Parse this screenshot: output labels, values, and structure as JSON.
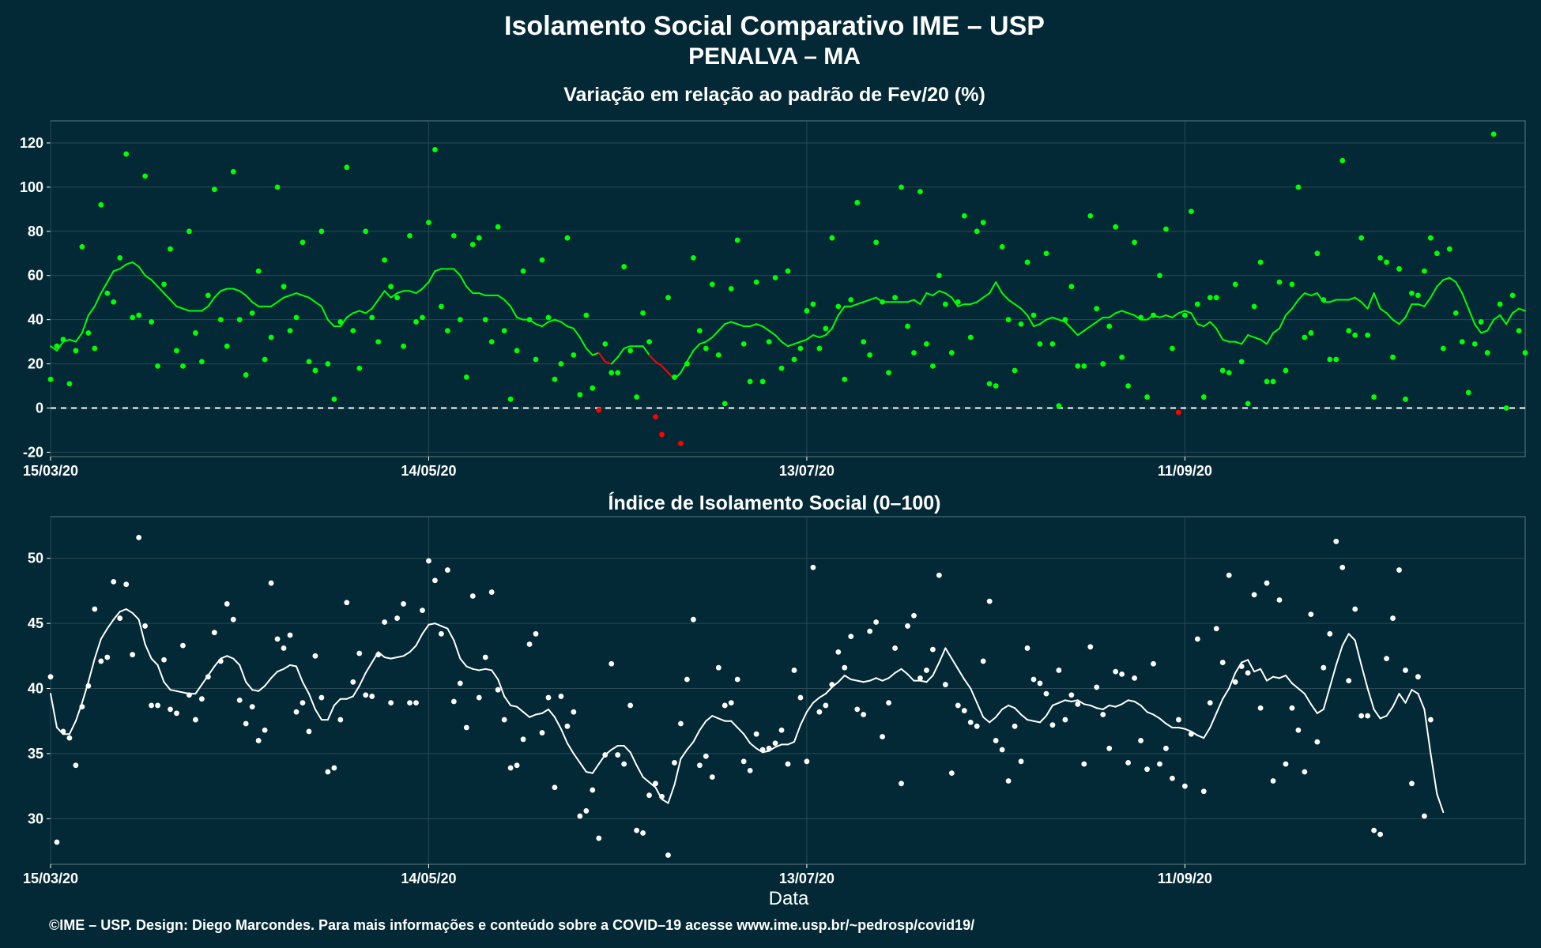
{
  "header": {
    "title": "Isolamento Social Comparativo IME – USP",
    "subtitle": "PENALVA – MA"
  },
  "footer": {
    "credit": "©IME – USP. Design: Diego Marcondes. Para mais informações e conteúdo sobre a COVID–19 acesse www.ime.usp.br/~pedrosp/covid19/"
  },
  "colors": {
    "background": "#022935",
    "positive": "#00ff00",
    "negative": "#ff0000",
    "index": "#ffffff",
    "grid": "#2a4a55"
  },
  "chart_data": [
    {
      "type": "scatter",
      "title": "Variação em relação ao padrão de Fev/20 (%)",
      "xlabel": "",
      "ylabel": "",
      "x_start": "15/03/20",
      "x_end": "04/11/20",
      "x_ticks": [
        "15/03/20",
        "14/05/20",
        "13/07/20",
        "11/09/20"
      ],
      "y_ticks": [
        -20,
        0,
        20,
        40,
        60,
        80,
        100,
        120
      ],
      "ylim": [
        -22,
        130
      ],
      "reference_line": 0,
      "grid": true,
      "smoothed_line": "7-day moving average",
      "points": [
        13,
        28,
        31,
        11,
        26,
        73,
        34,
        27,
        92,
        52,
        48,
        68,
        115,
        41,
        42,
        105,
        39,
        19,
        56,
        72,
        26,
        19,
        80,
        34,
        21,
        51,
        99,
        40,
        28,
        107,
        40,
        15,
        43,
        62,
        22,
        32,
        100,
        55,
        35,
        41,
        75,
        21,
        17,
        80,
        20,
        4,
        39,
        109,
        35,
        18,
        80,
        41,
        30,
        67,
        55,
        50,
        28,
        78,
        39,
        41,
        84,
        117,
        46,
        35,
        78,
        40,
        14,
        74,
        77,
        40,
        30,
        82,
        35,
        4,
        26,
        62,
        40,
        22,
        67,
        41,
        13,
        20,
        77,
        24,
        6,
        42,
        9,
        -1,
        29,
        16,
        16,
        64,
        26,
        5,
        43,
        30,
        -4,
        -12,
        50,
        14,
        -16,
        20,
        68,
        35,
        27,
        56,
        24,
        2,
        54,
        76,
        29,
        12,
        57,
        12,
        30,
        59,
        18,
        62,
        22,
        27,
        44,
        47,
        27,
        36,
        77,
        46,
        13,
        49,
        93,
        30,
        24,
        75,
        48,
        16,
        50,
        100,
        37,
        25,
        98,
        29,
        19,
        60,
        47,
        25,
        48,
        87,
        32,
        80,
        84,
        11,
        10,
        73,
        40,
        17,
        38,
        66,
        42,
        29,
        70,
        29,
        1,
        40,
        55,
        19,
        19,
        87,
        45,
        20,
        37,
        82,
        23,
        10,
        75,
        41,
        5,
        42,
        60,
        81,
        27,
        -2,
        42,
        89,
        47,
        5,
        50,
        50,
        17,
        16,
        56,
        21,
        2,
        46,
        66,
        12,
        12,
        57,
        17,
        56,
        100,
        32,
        34,
        70,
        49,
        22,
        22,
        112,
        35,
        33,
        77,
        33,
        5,
        68,
        66,
        23,
        63,
        4,
        52,
        51,
        62,
        77,
        70,
        27,
        72,
        43,
        30,
        7,
        29,
        39,
        25,
        124,
        47,
        0,
        51,
        35,
        25
      ],
      "smoothed": [
        28,
        26,
        30,
        31,
        30,
        34,
        42,
        46,
        52,
        57,
        62,
        63,
        65,
        66,
        64,
        60,
        58,
        55,
        52,
        49,
        46,
        45,
        44,
        44,
        44,
        46,
        50,
        53,
        54,
        54,
        53,
        51,
        48,
        46,
        46,
        46,
        48,
        50,
        51,
        52,
        51,
        50,
        48,
        46,
        40,
        37,
        37,
        41,
        43,
        44,
        43,
        45,
        49,
        53,
        50,
        52,
        53,
        53,
        52,
        54,
        57,
        62,
        63,
        63,
        63,
        60,
        55,
        52,
        52,
        51,
        51,
        51,
        49,
        46,
        41,
        40,
        40,
        38,
        37,
        39,
        40,
        39,
        37,
        36,
        32,
        27,
        24,
        25,
        21,
        20,
        23,
        27,
        28,
        28,
        28,
        24,
        21,
        19,
        16,
        13,
        16,
        21,
        26,
        29,
        30,
        32,
        35,
        38,
        39,
        38,
        37,
        37,
        38,
        37,
        35,
        33,
        30,
        28,
        29,
        30,
        31,
        33,
        32,
        33,
        36,
        42,
        46,
        46,
        47,
        48,
        49,
        50,
        48,
        48,
        48,
        48,
        48,
        49,
        47,
        52,
        51,
        53,
        52,
        50,
        46,
        47,
        47,
        48,
        50,
        52,
        57,
        52,
        49,
        47,
        45,
        42,
        37,
        38,
        40,
        41,
        40,
        39,
        36,
        33,
        35,
        37,
        39,
        41,
        41,
        43,
        44,
        43,
        42,
        40,
        40,
        42,
        41,
        42,
        41,
        43,
        44,
        43,
        38,
        37,
        39,
        36,
        31,
        30,
        30,
        29,
        33,
        32,
        31,
        29,
        34,
        36,
        42,
        45,
        49,
        52,
        51,
        52,
        48,
        48,
        49,
        49,
        49,
        50,
        48,
        45,
        52,
        45,
        43,
        40,
        38,
        41,
        47,
        47,
        46,
        50,
        55,
        58,
        59,
        57,
        52,
        45,
        38,
        34,
        35,
        40,
        42,
        38,
        43,
        45,
        44
      ]
    },
    {
      "type": "scatter",
      "title": "Índice de Isolamento Social (0–100)",
      "xlabel": "Data",
      "ylabel": "",
      "x_start": "15/03/20",
      "x_end": "04/11/20",
      "x_ticks": [
        "15/03/20",
        "14/05/20",
        "13/07/20",
        "11/09/20"
      ],
      "y_ticks": [
        30,
        35,
        40,
        45,
        50
      ],
      "ylim": [
        26.5,
        53.2
      ],
      "grid": true,
      "smoothed_line": "7-day moving average",
      "points": [
        40.9,
        28.2,
        36.7,
        36.2,
        34.1,
        38.6,
        40.2,
        46.1,
        42.1,
        42.4,
        48.2,
        45.4,
        48.0,
        42.6,
        51.6,
        44.8,
        38.7,
        38.7,
        42.2,
        38.4,
        38.1,
        43.3,
        39.5,
        37.6,
        39.2,
        40.9,
        44.3,
        42.1,
        46.5,
        45.3,
        39.1,
        37.3,
        38.6,
        36.0,
        36.8,
        48.1,
        43.8,
        43.1,
        44.1,
        38.2,
        38.9,
        36.7,
        42.5,
        39.3,
        33.6,
        33.9,
        37.6,
        46.6,
        40.5,
        42.7,
        39.5,
        39.4,
        42.6,
        45.1,
        38.9,
        45.4,
        46.5,
        38.9,
        38.9,
        46.0,
        49.8,
        48.3,
        44.2,
        49.1,
        39.0,
        40.4,
        37.0,
        47.1,
        39.3,
        42.4,
        47.4,
        39.9,
        37.6,
        33.9,
        34.1,
        36.1,
        43.4,
        44.2,
        36.6,
        39.3,
        32.4,
        39.4,
        37.1,
        38.2,
        30.2,
        30.6,
        32.2,
        28.5,
        34.9,
        41.9,
        34.9,
        34.2,
        38.7,
        29.1,
        28.9,
        31.8,
        32.7,
        31.7,
        27.2,
        34.3,
        37.3,
        40.7,
        45.3,
        34.1,
        34.8,
        33.2,
        41.6,
        38.7,
        38.9,
        40.7,
        34.4,
        33.7,
        36.5,
        35.3,
        35.4,
        35.8,
        36.8,
        34.2,
        41.4,
        39.3,
        34.4,
        49.3,
        38.2,
        38.7,
        40.3,
        42.8,
        41.6,
        44.0,
        38.4,
        38.0,
        44.4,
        45.1,
        36.3,
        38.9,
        43.1,
        32.7,
        44.8,
        45.6,
        40.8,
        41.4,
        43.0,
        48.7,
        40.3,
        33.5,
        38.7,
        38.3,
        37.4,
        37.1,
        42.1,
        46.7,
        36.0,
        35.3,
        32.9,
        37.1,
        34.4,
        43.1,
        40.7,
        40.4,
        39.6,
        37.2,
        41.4,
        37.6,
        39.5,
        38.8,
        34.2,
        43.2,
        40.1,
        38.0,
        35.4,
        41.3,
        41.1,
        34.3,
        40.8,
        36.0,
        33.8,
        41.9,
        34.2,
        35.4,
        33.1,
        37.6,
        32.5,
        36.5,
        43.8,
        32.1,
        38.9,
        44.6,
        42.0,
        48.7,
        40.5,
        41.7,
        41.2,
        47.2,
        38.5,
        48.1,
        32.9,
        46.8,
        34.2,
        38.5,
        36.8,
        33.6,
        45.7,
        35.9,
        41.6,
        44.2,
        51.3,
        49.3,
        40.6,
        46.1,
        37.9,
        37.9,
        29.1,
        28.8,
        42.3,
        45.4,
        49.1,
        41.4,
        32.7,
        40.9,
        30.2,
        37.6
      ],
      "smoothed": [
        39.6,
        37.0,
        36.5,
        36.5,
        37.5,
        38.9,
        40.5,
        42.3,
        43.8,
        44.6,
        45.3,
        45.9,
        46.1,
        45.8,
        45.3,
        43.4,
        42.3,
        41.8,
        40.5,
        39.9,
        39.8,
        39.7,
        39.6,
        39.6,
        40.3,
        41.0,
        41.7,
        42.3,
        42.5,
        42.3,
        41.8,
        40.5,
        39.9,
        39.8,
        40.2,
        40.8,
        41.3,
        41.5,
        41.8,
        41.7,
        40.5,
        39.6,
        38.4,
        37.6,
        37.6,
        38.7,
        39.2,
        39.2,
        39.4,
        40.2,
        41.2,
        42.0,
        42.8,
        42.4,
        42.3,
        42.4,
        42.5,
        42.8,
        43.3,
        44.2,
        44.9,
        45.0,
        44.8,
        44.6,
        43.7,
        42.3,
        41.7,
        41.5,
        41.4,
        41.5,
        41.4,
        40.7,
        39.4,
        38.7,
        38.6,
        38.2,
        37.8,
        38.0,
        38.1,
        38.4,
        37.8,
        36.9,
        35.8,
        35.0,
        34.3,
        33.6,
        33.5,
        34.2,
        34.9,
        35.3,
        35.6,
        35.6,
        35.1,
        34.1,
        33.2,
        32.8,
        32.4,
        31.5,
        31.2,
        32.6,
        34.6,
        35.3,
        35.9,
        36.8,
        37.5,
        37.9,
        37.7,
        37.5,
        37.5,
        37.0,
        36.5,
        35.8,
        35.4,
        35.1,
        35.2,
        35.5,
        35.7,
        35.7,
        35.9,
        37.2,
        38.2,
        38.9,
        39.3,
        39.6,
        40.1,
        40.5,
        41.0,
        40.7,
        40.6,
        40.5,
        40.6,
        40.8,
        40.6,
        40.8,
        41.2,
        41.5,
        41.1,
        40.6,
        40.6,
        40.5,
        41.0,
        42.0,
        43.1,
        42.3,
        41.5,
        40.7,
        40.0,
        38.9,
        37.8,
        37.4,
        37.8,
        38.4,
        38.7,
        38.5,
        38.0,
        37.6,
        37.5,
        37.4,
        37.9,
        38.7,
        38.9,
        39.1,
        39.0,
        39.1,
        38.8,
        38.7,
        38.5,
        38.4,
        38.7,
        38.6,
        38.8,
        39.1,
        39.0,
        38.7,
        38.2,
        38.0,
        37.7,
        37.3,
        37.0,
        37.0,
        36.9,
        36.7,
        36.4,
        36.2,
        37.0,
        38.1,
        39.2,
        40.0,
        41.2,
        42.0,
        42.2,
        41.3,
        41.5,
        40.6,
        40.9,
        40.8,
        41.0,
        40.4,
        40.0,
        39.6,
        38.8,
        38.1,
        38.4,
        40.1,
        41.8,
        43.3,
        44.2,
        43.7,
        41.8,
        40.0,
        38.4,
        37.7,
        37.9,
        38.6,
        39.6,
        38.9,
        39.9,
        39.6,
        38.4,
        35.0,
        31.9,
        30.5
      ]
    }
  ]
}
